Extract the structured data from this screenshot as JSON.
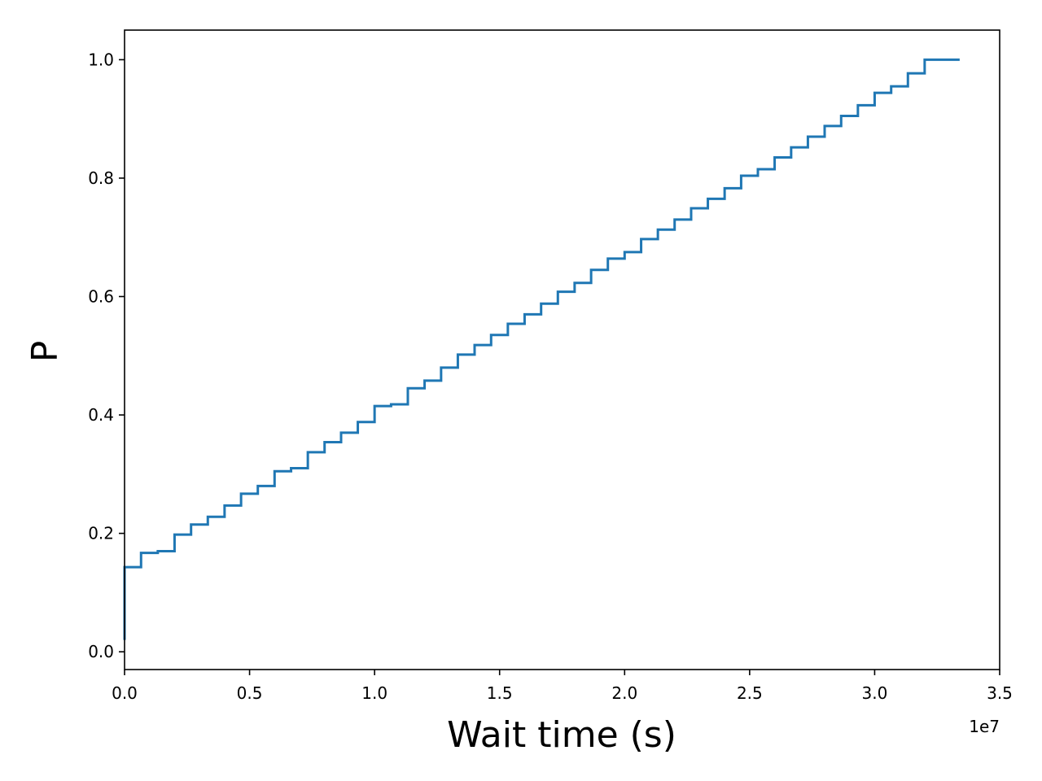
{
  "chart_data": {
    "type": "line",
    "drawstyle": "steps-post",
    "xlabel": "Wait time (s)",
    "ylabel": "P",
    "x_offset_label": "1e7",
    "xlim": [
      0,
      3.5
    ],
    "ylim": [
      -0.03,
      1.05
    ],
    "grid": false,
    "legend": "none",
    "line_color": "#1f77b4",
    "xticks": [
      {
        "value": 0.0,
        "label": "0.0"
      },
      {
        "value": 0.5,
        "label": "0.5"
      },
      {
        "value": 1.0,
        "label": "1.0"
      },
      {
        "value": 1.5,
        "label": "1.5"
      },
      {
        "value": 2.0,
        "label": "2.0"
      },
      {
        "value": 2.5,
        "label": "2.5"
      },
      {
        "value": 3.0,
        "label": "3.0"
      },
      {
        "value": 3.5,
        "label": "3.5"
      }
    ],
    "yticks": [
      {
        "value": 0.0,
        "label": "0.0"
      },
      {
        "value": 0.2,
        "label": "0.2"
      },
      {
        "value": 0.4,
        "label": "0.4"
      },
      {
        "value": 0.6,
        "label": "0.6"
      },
      {
        "value": 0.8,
        "label": "0.8"
      },
      {
        "value": 1.0,
        "label": "1.0"
      }
    ],
    "series": [
      {
        "x": [
          0.0,
          0.0,
          0.066,
          0.133,
          0.2,
          0.266,
          0.333,
          0.4,
          0.466,
          0.533,
          0.6,
          0.666,
          0.733,
          0.8,
          0.866,
          0.933,
          1.0,
          1.066,
          1.133,
          1.2,
          1.266,
          1.333,
          1.4,
          1.466,
          1.533,
          1.6,
          1.666,
          1.733,
          1.8,
          1.866,
          1.933,
          2.0,
          2.066,
          2.133,
          2.2,
          2.266,
          2.333,
          2.4,
          2.466,
          2.533,
          2.6,
          2.666,
          2.733,
          2.8,
          2.866,
          2.933,
          3.0,
          3.066,
          3.133,
          3.2,
          3.266,
          3.34
        ],
        "y": [
          0.02,
          0.143,
          0.167,
          0.17,
          0.198,
          0.215,
          0.228,
          0.247,
          0.267,
          0.28,
          0.305,
          0.31,
          0.337,
          0.354,
          0.37,
          0.388,
          0.415,
          0.418,
          0.445,
          0.458,
          0.48,
          0.502,
          0.518,
          0.535,
          0.554,
          0.57,
          0.588,
          0.608,
          0.623,
          0.645,
          0.664,
          0.675,
          0.697,
          0.713,
          0.73,
          0.749,
          0.765,
          0.783,
          0.804,
          0.815,
          0.835,
          0.852,
          0.87,
          0.888,
          0.905,
          0.923,
          0.944,
          0.955,
          0.977,
          1.0,
          1.0,
          1.0
        ]
      }
    ]
  }
}
